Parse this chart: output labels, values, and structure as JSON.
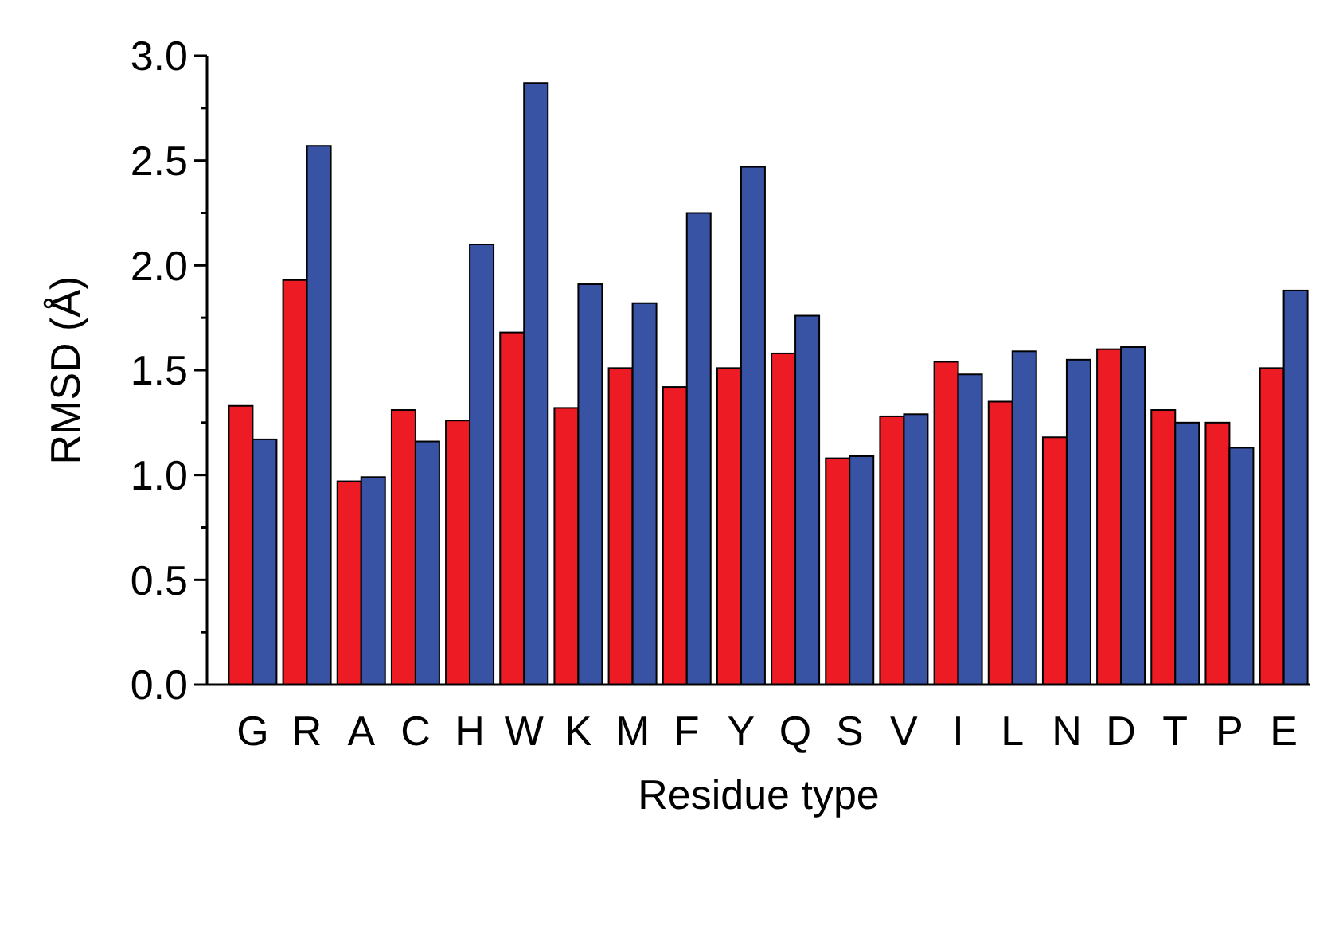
{
  "chart_data": {
    "type": "bar",
    "xlabel": "Residue type",
    "ylabel": "RMSD (Å)",
    "categories": [
      "G",
      "R",
      "A",
      "C",
      "H",
      "W",
      "K",
      "M",
      "F",
      "Y",
      "Q",
      "S",
      "V",
      "I",
      "L",
      "N",
      "D",
      "T",
      "P",
      "E"
    ],
    "series": [
      {
        "color": "#ed1c24",
        "values": [
          1.33,
          1.93,
          0.97,
          1.31,
          1.26,
          1.68,
          1.32,
          1.51,
          1.42,
          1.51,
          1.58,
          1.08,
          1.28,
          1.54,
          1.35,
          1.18,
          1.6,
          1.31,
          1.25,
          1.51
        ]
      },
      {
        "color": "#3953a4",
        "values": [
          1.17,
          2.57,
          0.99,
          1.16,
          2.1,
          2.87,
          1.91,
          1.82,
          2.25,
          2.47,
          1.76,
          1.09,
          1.29,
          1.48,
          1.59,
          1.55,
          1.61,
          1.25,
          1.13,
          1.88
        ]
      }
    ],
    "ylim": [
      0,
      3
    ],
    "yticks": [
      {
        "value": 0,
        "label": "0.0"
      },
      {
        "value": 0.25,
        "label": null
      },
      {
        "value": 0.5,
        "label": "0.5"
      },
      {
        "value": 0.75,
        "label": null
      },
      {
        "value": 1,
        "label": "1.0"
      },
      {
        "value": 1.25,
        "label": null
      },
      {
        "value": 1.5,
        "label": "1.5"
      },
      {
        "value": 1.75,
        "label": null
      },
      {
        "value": 2,
        "label": "2.0"
      },
      {
        "value": 2.25,
        "label": null
      },
      {
        "value": 2.5,
        "label": "2.5"
      },
      {
        "value": 2.75,
        "label": null
      },
      {
        "value": 3,
        "label": "3.0"
      }
    ],
    "grid": false
  }
}
